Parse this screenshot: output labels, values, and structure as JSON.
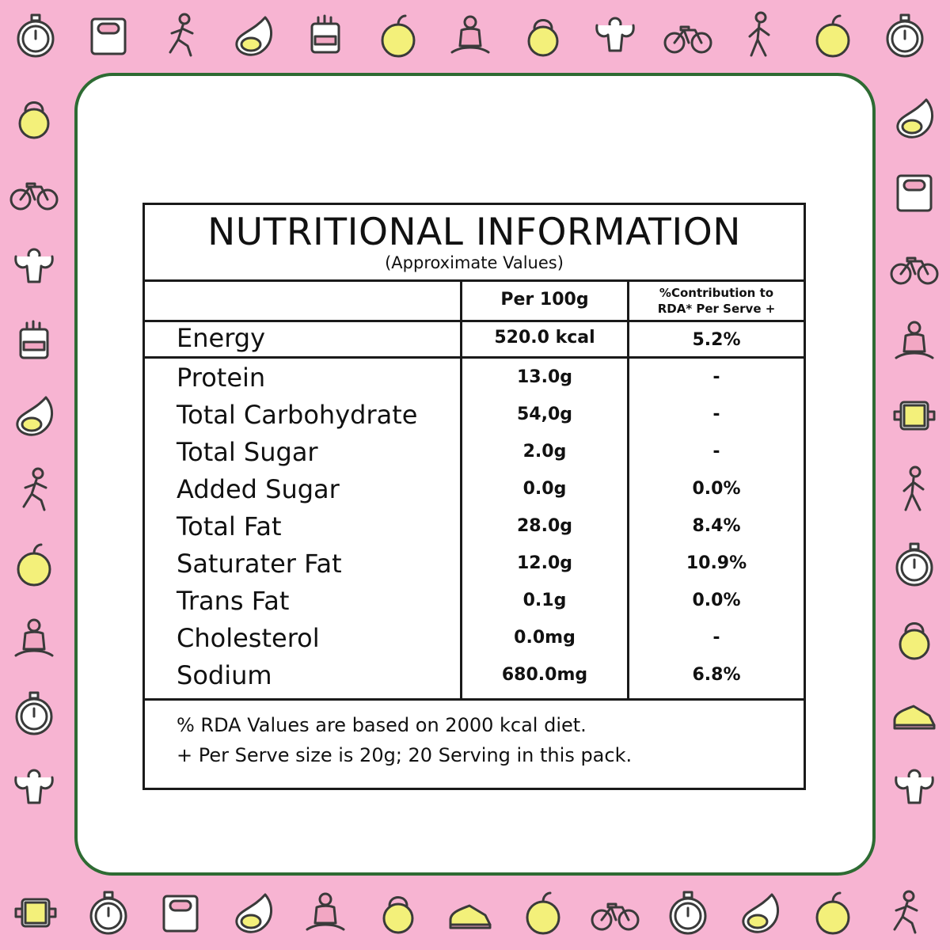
{
  "panel": {
    "title": "NUTRITIONAL INFORMATION",
    "subtitle": "(Approximate Values)"
  },
  "columns": {
    "per100g": "Per 100g",
    "rda_line1": "%Contribution to",
    "rda_line2": "RDA* Per Serve +"
  },
  "energy": {
    "label": "Energy",
    "value": "520.0 kcal",
    "rda": "5.2%"
  },
  "nutrients": [
    {
      "label": "Protein",
      "value": "13.0g",
      "rda": "-"
    },
    {
      "label": "Total Carbohydrate",
      "value": "54,0g",
      "rda": "-"
    },
    {
      "label": "Total Sugar",
      "value": "2.0g",
      "rda": "-"
    },
    {
      "label": "Added Sugar",
      "value": "0.0g",
      "rda": "0.0%"
    },
    {
      "label": "Total Fat",
      "value": "28.0g",
      "rda": "8.4%"
    },
    {
      "label": "Saturater Fat",
      "value": "12.0g",
      "rda": "10.9%"
    },
    {
      "label": "Trans Fat",
      "value": "0.1g",
      "rda": "0.0%"
    },
    {
      "label": "Cholesterol",
      "value": "0.0mg",
      "rda": "-"
    },
    {
      "label": "Sodium",
      "value": "680.0mg",
      "rda": "6.8%"
    }
  ],
  "footnotes": {
    "line1": "% RDA Values are based on 2000 kcal diet.",
    "line2": "+ Per Serve size is 20g; 20 Serving in this pack."
  },
  "colors": {
    "background": "#f7b4d2",
    "card_border": "#2e6b33",
    "icon_yellow": "#f3f07a",
    "icon_pink": "#f2a7c3"
  },
  "icons": [
    "stopwatch-icon",
    "weighing-scale-icon",
    "runner-icon",
    "avocado-icon",
    "glove-icon",
    "apple-icon",
    "meditation-icon",
    "kettlebell-icon",
    "bodybuilder-icon",
    "bicycle-icon",
    "walker-icon",
    "sneaker-icon",
    "fitness-tracker-icon"
  ]
}
